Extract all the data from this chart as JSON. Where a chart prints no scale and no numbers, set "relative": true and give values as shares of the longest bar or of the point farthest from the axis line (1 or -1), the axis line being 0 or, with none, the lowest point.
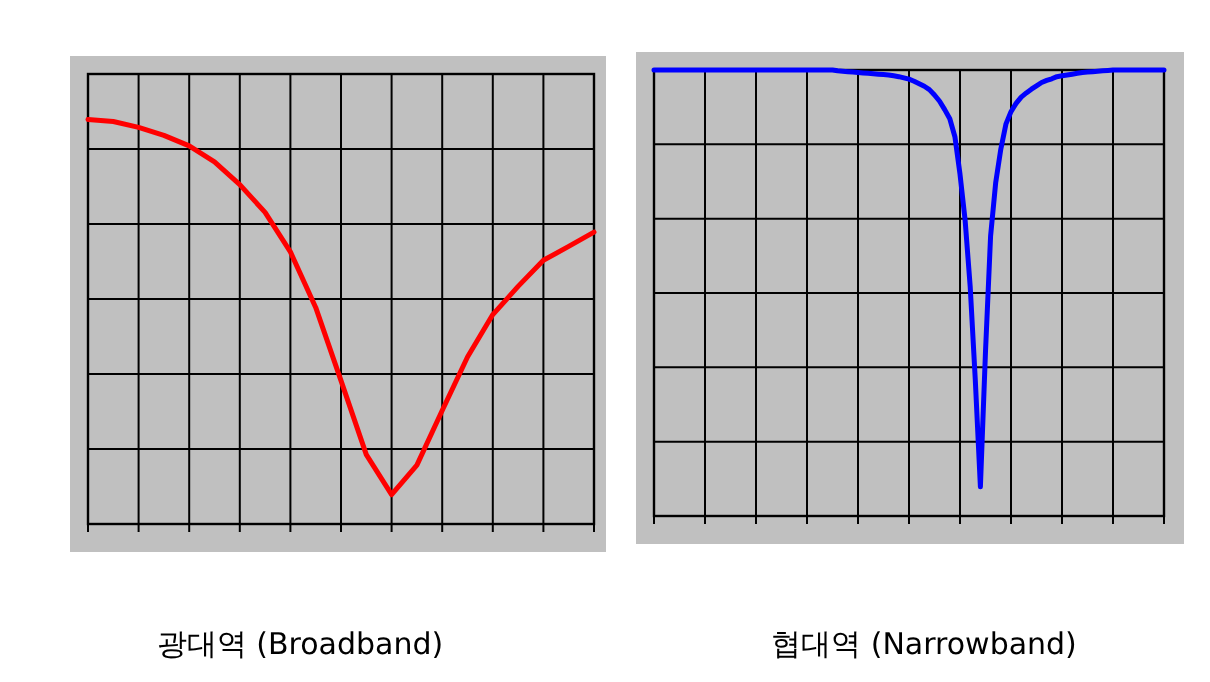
{
  "chart_data": [
    {
      "type": "line",
      "title": "광대역 (Broadband)",
      "relative": true,
      "grid": true,
      "categories": [
        null,
        null,
        null,
        null,
        null,
        null,
        null,
        null,
        null,
        null,
        null,
        null,
        null,
        null,
        null,
        null,
        null,
        null,
        null,
        null,
        null
      ],
      "series": [
        {
          "color": "#ff0000",
          "values": [
            -0.108,
            -0.113,
            -0.127,
            -0.146,
            -0.171,
            -0.209,
            -0.263,
            -0.329,
            -0.423,
            -0.555,
            -0.729,
            -0.905,
            -1,
            -0.93,
            -0.8,
            -0.673,
            -0.572,
            -0.505,
            -0.443,
            -0.41,
            -0.376
          ]
        }
      ]
    },
    {
      "type": "line",
      "title": "협대역 (Narrowband)",
      "relative": true,
      "grid": true,
      "categories": [
        null,
        null,
        null,
        null,
        null,
        null,
        null,
        null,
        null,
        null,
        null,
        null,
        null,
        null,
        null,
        null,
        null,
        null,
        null,
        null,
        null,
        null,
        null,
        null,
        null,
        null,
        null,
        null,
        null,
        null,
        null,
        null,
        null,
        null,
        null,
        null,
        null,
        null,
        null,
        null,
        null,
        null,
        null,
        null,
        null,
        null,
        null,
        null,
        null,
        null,
        null,
        null,
        null,
        null,
        null,
        null,
        null,
        null,
        null,
        null,
        null,
        null,
        null,
        null,
        null,
        null,
        null,
        null,
        null,
        null,
        null,
        null,
        null,
        null,
        null,
        null,
        null,
        null,
        null,
        null,
        null,
        null,
        null,
        null,
        null,
        null,
        null,
        null,
        null,
        null,
        null,
        null,
        null,
        null,
        null,
        null,
        null,
        null,
        null,
        null,
        null
      ],
      "series": [
        {
          "color": "#0000ff",
          "values": [
            0,
            0,
            0,
            0,
            0,
            0,
            0,
            0,
            0,
            0,
            0,
            0,
            0,
            0,
            0,
            0,
            0,
            0,
            0,
            0,
            0,
            0,
            0,
            0,
            0,
            0,
            0,
            0,
            0,
            0,
            0,
            0,
            0,
            0,
            0,
            0,
            -0.002,
            -0.003,
            -0.004,
            -0.005,
            -0.006,
            -0.007,
            -0.008,
            -0.009,
            -0.01,
            -0.011,
            -0.012,
            -0.014,
            -0.016,
            -0.019,
            -0.022,
            -0.027,
            -0.033,
            -0.039,
            -0.047,
            -0.06,
            -0.075,
            -0.095,
            -0.117,
            -0.16,
            -0.25,
            -0.36,
            -0.52,
            -0.744,
            -1,
            -0.675,
            -0.398,
            -0.27,
            -0.19,
            -0.13,
            -0.1,
            -0.08,
            -0.065,
            -0.055,
            -0.046,
            -0.038,
            -0.03,
            -0.025,
            -0.021,
            -0.016,
            -0.014,
            -0.012,
            -0.01,
            -0.008,
            -0.006,
            -0.005,
            -0.004,
            -0.003,
            -0.002,
            -0.001,
            0,
            0,
            0,
            0,
            0,
            0,
            0,
            0,
            0,
            0,
            0
          ]
        }
      ]
    }
  ]
}
